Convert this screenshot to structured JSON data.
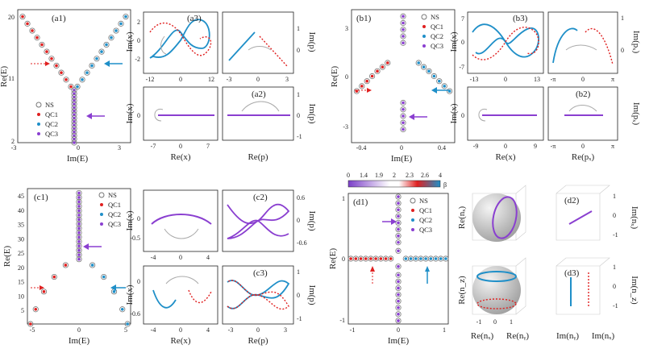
{
  "colors": {
    "ns": "#777777",
    "qc1": "#e02020",
    "qc2": "#1f8fc8",
    "qc3": "#8a3fd0",
    "guide": "#aaaaaa"
  },
  "legend": {
    "ns": "NS",
    "qc1": "QC1",
    "qc2": "QC2",
    "qc3": "QC3"
  },
  "panels": {
    "a1": {
      "label": "(a1)",
      "xlabel": "Im(E)",
      "ylabel": "Re(E)",
      "xticks": [
        "-3",
        "0",
        "3"
      ],
      "yticks": [
        "20",
        "11",
        "2"
      ]
    },
    "a2": {
      "label": "(a2)",
      "xlabel": "Re(x)",
      "ylabel": "Im(x)",
      "xticks": [
        "-7",
        "0",
        "7"
      ],
      "yticks": [
        "0"
      ],
      "xlabel2": "Re(p)",
      "ylabel2": "Im(p)",
      "yticks2": [
        "1",
        "0",
        "-1"
      ]
    },
    "a3": {
      "label": "(a3)",
      "ylabel": "Im(x)",
      "xticks": [
        "-12",
        "0",
        "12"
      ],
      "yticks": [
        "2",
        "0",
        "-2"
      ],
      "ylabel2": "Im(p)",
      "xticks2": [
        "-3",
        "0",
        "3"
      ],
      "yticks2": [
        "1",
        "0"
      ]
    },
    "b1": {
      "label": "(b1)",
      "xlabel": "Im(E)",
      "ylabel": "Re(E)",
      "xticks": [
        "-0.4",
        "0",
        "0.4"
      ],
      "yticks": [
        "3",
        "0",
        "-3"
      ]
    },
    "b2": {
      "label": "(b2)",
      "xlabel": "Re(x)",
      "ylabel": "Im(x)",
      "xticks": [
        "-9",
        "0",
        "9"
      ],
      "yticks": [
        "0"
      ],
      "xlabel2": "Re(pₓ)",
      "ylabel2": "Im(pₓ)",
      "xticks2": [
        "-π",
        "0",
        "π"
      ]
    },
    "b3": {
      "label": "(b3)",
      "ylabel": "Im(x)",
      "xticks": [
        "-13",
        "0",
        "13"
      ],
      "yticks": [
        "7",
        "0",
        "-7"
      ],
      "ylabel2": "Im(pₓ)",
      "xticks2": [
        "-π",
        "0",
        "π"
      ],
      "yticks2": [
        "1",
        "0"
      ]
    },
    "c1": {
      "label": "(c1)",
      "xlabel": "Im(E)",
      "ylabel": "Re(E)",
      "xticks": [
        "-5",
        "0",
        "5"
      ],
      "yticks": [
        "45",
        "40",
        "35",
        "30",
        "25",
        "20",
        "15",
        "10",
        "5"
      ]
    },
    "c2": {
      "label": "(c2)",
      "ylabel": "Im(x)",
      "xticks": [
        "-4",
        "0",
        "4"
      ],
      "yticks": [
        "0",
        "-0.5"
      ],
      "ylabel2": "Im(p)",
      "yticks2": [
        "0.6",
        "0",
        "-0.6"
      ]
    },
    "c3": {
      "label": "(c3)",
      "xlabel": "Re(x)",
      "ylabel": "Im(x)",
      "xticks": [
        "-4",
        "0",
        "4"
      ],
      "yticks": [
        "0",
        "-0.6"
      ],
      "xlabel2": "Re(p)",
      "ylabel2": "Im(p)",
      "xticks2": [
        "-3",
        "0",
        "3"
      ],
      "yticks2": [
        "1",
        "0",
        "-1"
      ]
    },
    "d1": {
      "label": "(d1)",
      "xlabel": "Im(E)",
      "ylabel": "Re(E)",
      "xticks": [
        "-1",
        "0",
        "1"
      ],
      "yticks": [
        "1",
        "0",
        "-1"
      ],
      "colorbar_ticks": [
        "0",
        "1.4",
        "1.9",
        "2",
        "2.3",
        "2.6",
        "4"
      ],
      "colorbar_label": "β"
    },
    "d2": {
      "label": "(d2)",
      "ylabel": "Re(nₓ)",
      "ylabel2": "Im(nₓ)",
      "yticks2": [
        "1",
        "0",
        "-1"
      ]
    },
    "d3": {
      "label": "(d3)",
      "xlabel": "Re(nₓ)",
      "xlabel_b": "Re(nᵧ)",
      "ylabel": "Re(n_z)",
      "xlabel2": "Im(nᵧ)",
      "xlabel2_b": "Im(nₓ)",
      "ylabel2": "Im(n_z)",
      "xticks": [
        "-1",
        "0",
        "1"
      ],
      "yticks2": [
        "1",
        "0",
        "-1"
      ]
    }
  },
  "chart_data": [
    {
      "type": "scatter",
      "title": "(a1)",
      "xlabel": "Im(E)",
      "ylabel": "Re(E)",
      "xlim": [
        -3.5,
        3.5
      ],
      "ylim": [
        2,
        21
      ],
      "series": [
        {
          "name": "QC1",
          "x": [
            -3.2,
            -2.9,
            -2.6,
            -2.3,
            -2.0,
            -1.7,
            -1.4,
            -1.1,
            -0.8,
            -0.5,
            -0.2
          ],
          "y": [
            20,
            19,
            18,
            17,
            16,
            15,
            14,
            13,
            12,
            11,
            10
          ]
        },
        {
          "name": "QC2",
          "x": [
            3.2,
            2.9,
            2.6,
            2.3,
            2.0,
            1.7,
            1.4,
            1.1,
            0.8,
            0.5,
            0.2
          ],
          "y": [
            20,
            19,
            18,
            17,
            16,
            15,
            14,
            13,
            12,
            11,
            10
          ]
        },
        {
          "name": "QC3",
          "x": [
            0,
            0,
            0,
            0,
            0,
            0,
            0,
            0,
            0,
            0,
            0,
            0,
            0,
            0,
            0,
            0
          ],
          "y": [
            9.5,
            9,
            8.5,
            8,
            7.5,
            7,
            6.5,
            6,
            5.5,
            5,
            4.5,
            4,
            3.5,
            3,
            2.5,
            2
          ]
        }
      ]
    },
    {
      "type": "scatter",
      "title": "(b1)",
      "xlabel": "Im(E)",
      "ylabel": "Re(E)",
      "xlim": [
        -0.5,
        0.5
      ],
      "ylim": [
        -4,
        4
      ],
      "series": [
        {
          "name": "QC1",
          "x": [
            -0.45,
            -0.4,
            -0.35,
            -0.3,
            -0.25,
            -0.2,
            -0.15
          ],
          "y": [
            -0.9,
            -0.6,
            -0.3,
            0,
            0.3,
            0.55,
            0.8
          ]
        },
        {
          "name": "QC2",
          "x": [
            0.45,
            0.4,
            0.35,
            0.3,
            0.25,
            0.2,
            0.15
          ],
          "y": [
            -0.9,
            -0.6,
            -0.3,
            0,
            0.3,
            0.55,
            0.8
          ]
        },
        {
          "name": "QC3",
          "x": [
            0,
            0,
            0,
            0,
            0,
            0,
            0,
            0,
            0,
            0
          ],
          "y": [
            3.6,
            3.2,
            2.8,
            2.4,
            2.0,
            -1.6,
            -2.0,
            -2.4,
            -2.8,
            -3.2
          ]
        }
      ]
    },
    {
      "type": "scatter",
      "title": "(c1)",
      "xlabel": "Im(E)",
      "ylabel": "Re(E)",
      "xlim": [
        -5,
        5
      ],
      "ylim": [
        2,
        48
      ],
      "series": [
        {
          "name": "QC1",
          "x": [
            -4.7,
            -4.2,
            -3.4,
            -2.4,
            -1.3
          ],
          "y": [
            2,
            7,
            13,
            18,
            22
          ]
        },
        {
          "name": "QC2",
          "x": [
            4.7,
            4.2,
            3.4,
            2.4,
            1.3
          ],
          "y": [
            2,
            7,
            13,
            18,
            22
          ]
        },
        {
          "name": "QC3",
          "x": [
            0,
            0,
            0,
            0,
            0,
            0,
            0,
            0,
            0,
            0,
            0,
            0,
            0,
            0,
            0,
            0
          ],
          "y": [
            24,
            25.5,
            27,
            28.5,
            30,
            31.5,
            33,
            34.5,
            36,
            37.5,
            39,
            40.5,
            42,
            43.5,
            45,
            46.5
          ]
        }
      ]
    },
    {
      "type": "scatter",
      "title": "(d1)",
      "xlabel": "Im(E)",
      "ylabel": "Re(E)",
      "xlim": [
        -1,
        1
      ],
      "ylim": [
        -1,
        1
      ],
      "series": [
        {
          "name": "QC1",
          "x": [
            -0.95,
            -0.85,
            -0.75,
            -0.65,
            -0.55,
            -0.45,
            -0.35,
            -0.25,
            -0.15
          ],
          "y": [
            0,
            0,
            0,
            0,
            0,
            0,
            0,
            0,
            0
          ]
        },
        {
          "name": "QC2",
          "x": [
            0.95,
            0.85,
            0.75,
            0.65,
            0.55,
            0.45,
            0.35,
            0.25,
            0.15
          ],
          "y": [
            0,
            0,
            0,
            0,
            0,
            0,
            0,
            0,
            0
          ]
        },
        {
          "name": "QC3",
          "x": [
            0,
            0,
            0,
            0,
            0,
            0,
            0,
            0,
            0,
            0,
            0,
            0,
            0,
            0,
            0,
            0,
            0,
            0
          ],
          "y": [
            0.95,
            0.85,
            0.75,
            0.65,
            0.55,
            0.45,
            0.35,
            0.25,
            0.12,
            -0.12,
            -0.25,
            -0.35,
            -0.45,
            -0.55,
            -0.65,
            -0.75,
            -0.85,
            -0.95
          ]
        }
      ]
    }
  ]
}
